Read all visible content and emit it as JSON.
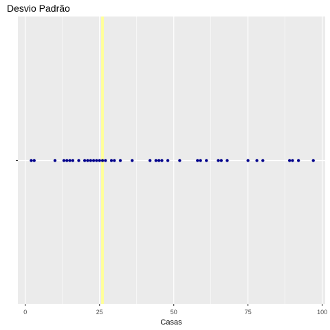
{
  "chart_data": {
    "type": "scatter",
    "title": "Desvio Padrão",
    "xlabel": "Casas",
    "ylabel": "",
    "xlim": [
      -2.5,
      101
    ],
    "xticks": [
      0,
      25,
      50,
      75,
      100
    ],
    "xtick_labels": [
      "0",
      "25",
      "50",
      "75",
      "100"
    ],
    "x_minor_ticks": [
      12.5,
      37.5,
      62.5,
      87.5
    ],
    "grid": true,
    "reference_line": {
      "x": 26,
      "color": "#ffff99"
    },
    "point_color": "#00008b",
    "panel_color": "#ebebeb",
    "grid_color": "#ffffff",
    "series": [
      {
        "values": [
          2,
          3,
          10,
          13,
          14,
          15,
          16,
          18,
          20,
          21,
          22,
          23,
          24,
          25,
          26,
          27,
          29,
          30,
          32,
          36,
          42,
          44,
          45,
          46,
          48,
          52,
          58,
          59,
          61,
          65,
          66,
          68,
          75,
          78,
          80,
          89,
          90,
          92,
          97
        ]
      }
    ]
  }
}
